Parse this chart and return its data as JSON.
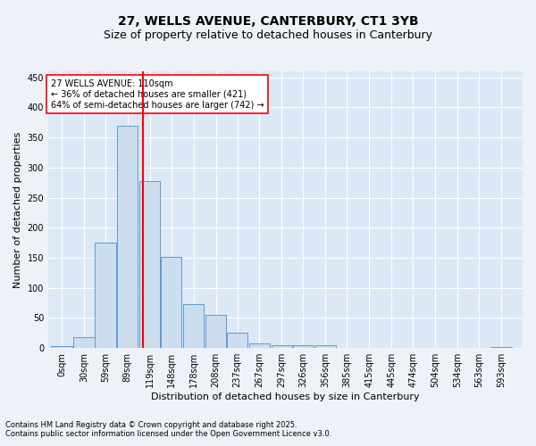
{
  "title1": "27, WELLS AVENUE, CANTERBURY, CT1 3YB",
  "title2": "Size of property relative to detached houses in Canterbury",
  "xlabel": "Distribution of detached houses by size in Canterbury",
  "ylabel": "Number of detached properties",
  "bar_color": "#ccdded",
  "bar_edge_color": "#5b9bd5",
  "red_line_x": 110,
  "bin_width": 29,
  "bin_centers": [
    0,
    30,
    59,
    89,
    119,
    148,
    178,
    208,
    237,
    267,
    297,
    326,
    356,
    385,
    415,
    445,
    474,
    504,
    534,
    563,
    593
  ],
  "values": [
    3,
    18,
    175,
    370,
    277,
    152,
    73,
    55,
    25,
    8,
    5,
    5,
    5,
    0,
    0,
    1,
    0,
    0,
    0,
    0,
    2
  ],
  "xtick_labels": [
    "0sqm",
    "30sqm",
    "59sqm",
    "89sqm",
    "119sqm",
    "148sqm",
    "178sqm",
    "208sqm",
    "237sqm",
    "267sqm",
    "297sqm",
    "326sqm",
    "356sqm",
    "385sqm",
    "415sqm",
    "445sqm",
    "474sqm",
    "504sqm",
    "534sqm",
    "563sqm",
    "593sqm"
  ],
  "ylim": [
    0,
    460
  ],
  "yticks": [
    0,
    50,
    100,
    150,
    200,
    250,
    300,
    350,
    400,
    450
  ],
  "annotation_text": "27 WELLS AVENUE: 110sqm\n← 36% of detached houses are smaller (421)\n64% of semi-detached houses are larger (742) →",
  "footnote1": "Contains HM Land Registry data © Crown copyright and database right 2025.",
  "footnote2": "Contains public sector information licensed under the Open Government Licence v3.0.",
  "bg_color": "#eef2f8",
  "plot_bg_color": "#dce8f5",
  "grid_color": "#ffffff",
  "title_fontsize": 10,
  "subtitle_fontsize": 9,
  "axis_label_fontsize": 8,
  "tick_fontsize": 7,
  "footnote_fontsize": 6
}
